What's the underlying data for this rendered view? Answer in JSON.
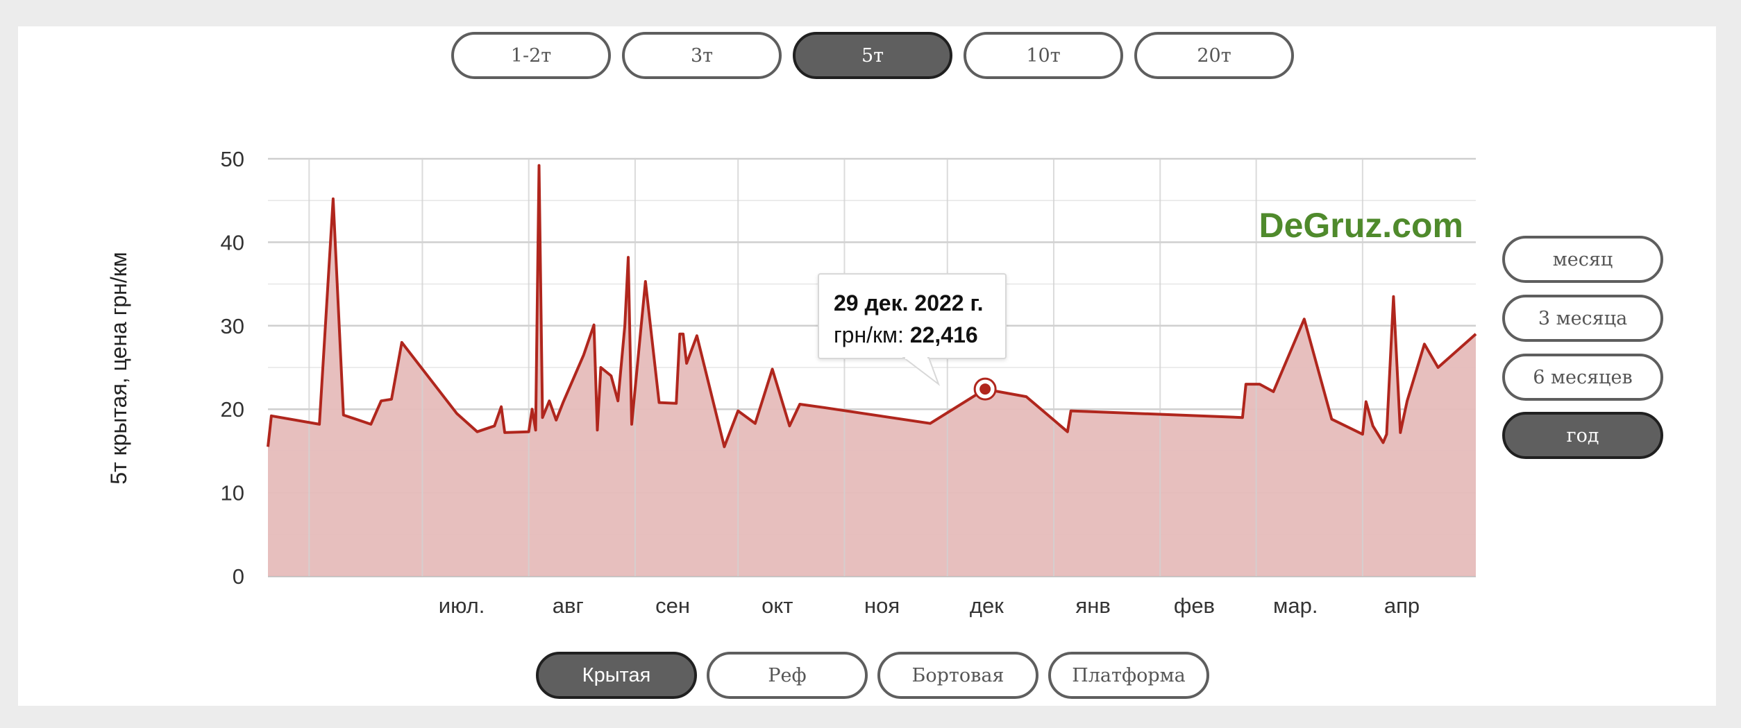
{
  "tonnage_tabs": [
    {
      "label": "1-2т",
      "active": false
    },
    {
      "label": "3т",
      "active": false
    },
    {
      "label": "5т",
      "active": true
    },
    {
      "label": "10т",
      "active": false
    },
    {
      "label": "20т",
      "active": false
    }
  ],
  "period_tabs": [
    {
      "label": "месяц",
      "active": false
    },
    {
      "label": "3 месяца",
      "active": false
    },
    {
      "label": "6 месяцев",
      "active": false
    },
    {
      "label": "год",
      "active": true
    }
  ],
  "body_tabs": [
    {
      "label": "Крытая",
      "active": true
    },
    {
      "label": "Реф",
      "active": false
    },
    {
      "label": "Бортовая",
      "active": false
    },
    {
      "label": "Платформа",
      "active": false
    }
  ],
  "watermark": "DeGruz.com",
  "tooltip": {
    "date": "29 дек. 2022 г.",
    "series_label": "грн/км:",
    "value": "22,416"
  },
  "colors": {
    "line": "#b0261d",
    "fill": "#e6bcbb",
    "watermark": "#4f8a2c",
    "active_button": "#5f5f5f"
  },
  "chart_data": {
    "type": "area",
    "ylabel": "5т крытая, цена грн/км",
    "xlabel": "",
    "ylim": [
      0,
      50
    ],
    "yticks": [
      0,
      10,
      20,
      30,
      40,
      50
    ],
    "xlim": [
      "2022-06-03",
      "2023-05-21"
    ],
    "month_ticks": [
      {
        "date": "2022-06-15",
        "label": ""
      },
      {
        "date": "2022-07-18",
        "label": "июл."
      },
      {
        "date": "2022-08-18",
        "label": "авг"
      },
      {
        "date": "2022-09-18",
        "label": "сен"
      },
      {
        "date": "2022-10-18",
        "label": "окт"
      },
      {
        "date": "2022-11-18",
        "label": "ноя"
      },
      {
        "date": "2022-12-18",
        "label": "дек"
      },
      {
        "date": "2023-01-18",
        "label": "янв"
      },
      {
        "date": "2023-02-18",
        "label": "фев"
      },
      {
        "date": "2023-03-18",
        "label": "мар."
      },
      {
        "date": "2023-04-18",
        "label": "апр"
      }
    ],
    "grid": true,
    "highlight": {
      "date": "2022-12-29",
      "value": 22.416
    },
    "series": [
      {
        "x": [
          "2022-06-03",
          "2022-06-04",
          "2022-06-18",
          "2022-06-22",
          "2022-06-25",
          "2022-07-03",
          "2022-07-06",
          "2022-07-09",
          "2022-07-12",
          "2022-07-28",
          "2022-08-03",
          "2022-08-08",
          "2022-08-10",
          "2022-08-11",
          "2022-08-18",
          "2022-08-19",
          "2022-08-20",
          "2022-08-21",
          "2022-08-22",
          "2022-08-24",
          "2022-08-26",
          "2022-08-28",
          "2022-09-03",
          "2022-09-06",
          "2022-09-07",
          "2022-09-08",
          "2022-09-11",
          "2022-09-13",
          "2022-09-15",
          "2022-09-16",
          "2022-09-17",
          "2022-09-21",
          "2022-09-25",
          "2022-09-30",
          "2022-10-01",
          "2022-10-02",
          "2022-10-03",
          "2022-10-06",
          "2022-10-14",
          "2022-10-18",
          "2022-10-23",
          "2022-10-28",
          "2022-11-02",
          "2022-11-05",
          "2022-11-12",
          "2022-12-13",
          "2022-12-29",
          "2023-01-10",
          "2023-01-22",
          "2023-01-23",
          "2023-03-14",
          "2023-03-15",
          "2023-03-19",
          "2023-03-23",
          "2023-04-01",
          "2023-04-09",
          "2023-04-18",
          "2023-04-19",
          "2023-04-21",
          "2023-04-24",
          "2023-04-25",
          "2023-04-27",
          "2023-04-29",
          "2023-05-01",
          "2023-05-06",
          "2023-05-10",
          "2023-05-21"
        ],
        "y": [
          15.5,
          19.2,
          18.2,
          45.2,
          19.3,
          18.2,
          21.0,
          21.2,
          28.0,
          19.5,
          17.3,
          18.0,
          20.3,
          17.2,
          17.3,
          20.0,
          17.5,
          49.2,
          19.0,
          21.0,
          18.7,
          20.8,
          26.5,
          30.1,
          17.5,
          25.0,
          24.0,
          21.0,
          30.0,
          38.2,
          18.2,
          35.3,
          20.8,
          20.7,
          29.0,
          29.0,
          25.5,
          28.8,
          15.5,
          19.8,
          18.3,
          24.8,
          18.0,
          20.6,
          20.2,
          18.3,
          22.4,
          21.5,
          17.3,
          19.8,
          19.0,
          23.0,
          23.0,
          22.1,
          30.8,
          18.8,
          17.0,
          20.9,
          18.0,
          16.0,
          17.0,
          33.5,
          17.2,
          21.0,
          27.8,
          25.0,
          29.0
        ]
      }
    ]
  }
}
